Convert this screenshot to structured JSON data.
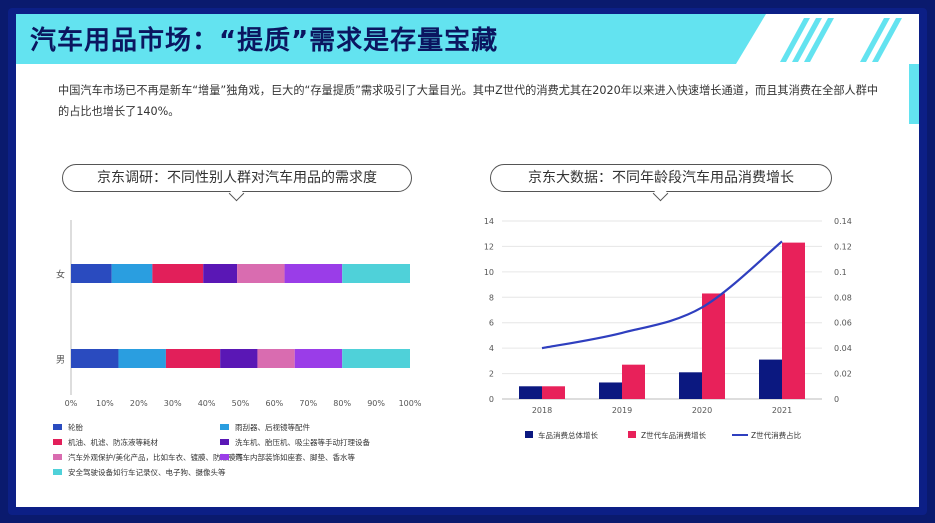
{
  "title": "汽车用品市场：“提质”需求是存量宝藏",
  "description": "中国汽车市场已不再是新车“增量”独角戏，巨大的“存量提质”需求吸引了大量目光。其中Z世代的消费尤其在2020年以来进入快速增长通道，而且其消费在全部人群中的占比也增长了140%。",
  "colors": {
    "accent": "#63e3f0",
    "frame": "#0c1f86",
    "title_text": "#0b1660"
  },
  "left_pill": "京东调研：不同性别人群对汽车用品的需求度",
  "right_pill": "京东大数据：不同年龄段汽车用品消费增长",
  "chart_data": [
    {
      "type": "bar",
      "orientation": "horizontal",
      "stacked": "percent",
      "categories": [
        "女",
        "男"
      ],
      "series": [
        {
          "name": "轮胎",
          "color": "#2a4bbf",
          "values": [
            12,
            14
          ]
        },
        {
          "name": "雨刮器、后视镜等配件",
          "color": "#2a9ee0",
          "values": [
            12,
            14
          ]
        },
        {
          "name": "机油、机滤、防冻液等耗材",
          "color": "#e21f5a",
          "values": [
            15,
            16
          ]
        },
        {
          "name": "洗车机、胎压机、吸尘器等手动打理设备",
          "color": "#5a17b5",
          "values": [
            10,
            11
          ]
        },
        {
          "name": "汽车外观保护/美化产品，比如车衣、镀膜、防爆膜等",
          "color": "#d96cb0",
          "values": [
            14,
            11
          ]
        },
        {
          "name": "汽车内部装饰如座套、脚垫、香水等",
          "color": "#9a3de8",
          "values": [
            17,
            14
          ]
        },
        {
          "name": "安全驾驶设备如行车记录仪、电子狗、摄像头等",
          "color": "#4fd1d9",
          "values": [
            20,
            20
          ]
        }
      ],
      "x_ticks": [
        "0%",
        "10%",
        "20%",
        "30%",
        "40%",
        "50%",
        "60%",
        "70%",
        "80%",
        "90%",
        "100%"
      ],
      "xlim": [
        0,
        100
      ],
      "legend": "bottom"
    },
    {
      "type": "bar+line",
      "categories": [
        "2018",
        "2019",
        "2020",
        "2021"
      ],
      "series": [
        {
          "name": "车品消费总体增长",
          "kind": "bar",
          "axis": "left",
          "color": "#0b1880",
          "values": [
            1.0,
            1.3,
            2.1,
            3.1
          ]
        },
        {
          "name": "Z世代车品消费增长",
          "kind": "bar",
          "axis": "left",
          "color": "#e8215a",
          "values": [
            1.0,
            2.7,
            8.3,
            12.3
          ]
        },
        {
          "name": "Z世代消费占比",
          "kind": "line",
          "axis": "right",
          "color": "#2f3fbf",
          "values": [
            0.04,
            0.052,
            0.072,
            0.124
          ]
        }
      ],
      "y_left_ticks": [
        "0",
        "2",
        "4",
        "6",
        "8",
        "10",
        "12",
        "14"
      ],
      "y_right_ticks": [
        "0",
        "0.02",
        "0.04",
        "0.06",
        "0.08",
        "0.1",
        "0.12",
        "0.14"
      ],
      "ylim_left": [
        0,
        14
      ],
      "ylim_right": [
        0,
        0.14
      ],
      "legend": "bottom"
    }
  ]
}
